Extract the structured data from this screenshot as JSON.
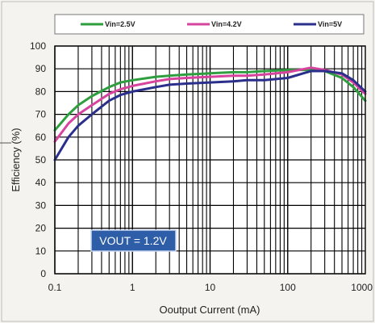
{
  "chart_data": {
    "type": "line",
    "xscale": "log",
    "xlim": [
      0.1,
      1000
    ],
    "ylim": [
      0,
      100
    ],
    "xticks": [
      0.1,
      1,
      10,
      100,
      1000
    ],
    "xtick_labels": [
      "0.1",
      "1",
      "10",
      "100",
      "1000"
    ],
    "yticks": [
      0,
      10,
      20,
      30,
      40,
      50,
      60,
      70,
      80,
      90,
      100
    ],
    "ytick_labels": [
      "0",
      "10",
      "20",
      "30",
      "40",
      "50",
      "60",
      "70",
      "80",
      "90",
      "100"
    ],
    "xlabel": "Ooutput Current (mA)",
    "ylabel": "Efficiency (%)",
    "grid": true,
    "legend_position": "top",
    "annotation": "VOUT = 1.2V",
    "series": [
      {
        "name": "Vin=2.5V",
        "color": "#2e9e3e",
        "x": [
          0.1,
          0.15,
          0.2,
          0.3,
          0.5,
          0.7,
          1,
          2,
          3,
          5,
          10,
          20,
          30,
          50,
          100,
          200,
          300,
          500,
          700,
          1000
        ],
        "y": [
          63,
          70,
          74,
          78,
          82,
          84,
          85,
          86.5,
          87,
          87.5,
          88,
          88.5,
          88.5,
          89,
          89.5,
          89.5,
          89,
          86,
          82,
          76
        ]
      },
      {
        "name": "Vin=4.2V",
        "color": "#d6449e",
        "x": [
          0.1,
          0.15,
          0.2,
          0.3,
          0.5,
          0.7,
          1,
          2,
          3,
          5,
          10,
          20,
          30,
          50,
          100,
          200,
          300,
          500,
          700,
          1000
        ],
        "y": [
          58,
          66,
          70,
          74,
          79,
          81,
          82.5,
          84.5,
          85.5,
          86,
          86.5,
          87,
          87,
          87.5,
          88.5,
          90.5,
          89.5,
          87.5,
          84,
          79
        ]
      },
      {
        "name": "Vin=5V",
        "color": "#2a2f8c",
        "x": [
          0.1,
          0.15,
          0.2,
          0.3,
          0.5,
          0.7,
          1,
          2,
          3,
          5,
          10,
          20,
          30,
          50,
          100,
          200,
          300,
          500,
          700,
          1000
        ],
        "y": [
          50,
          60,
          65,
          70,
          76,
          78.5,
          80,
          82,
          83,
          83.5,
          84,
          84.5,
          85,
          85,
          86,
          89,
          89,
          88,
          85,
          80
        ]
      }
    ]
  }
}
